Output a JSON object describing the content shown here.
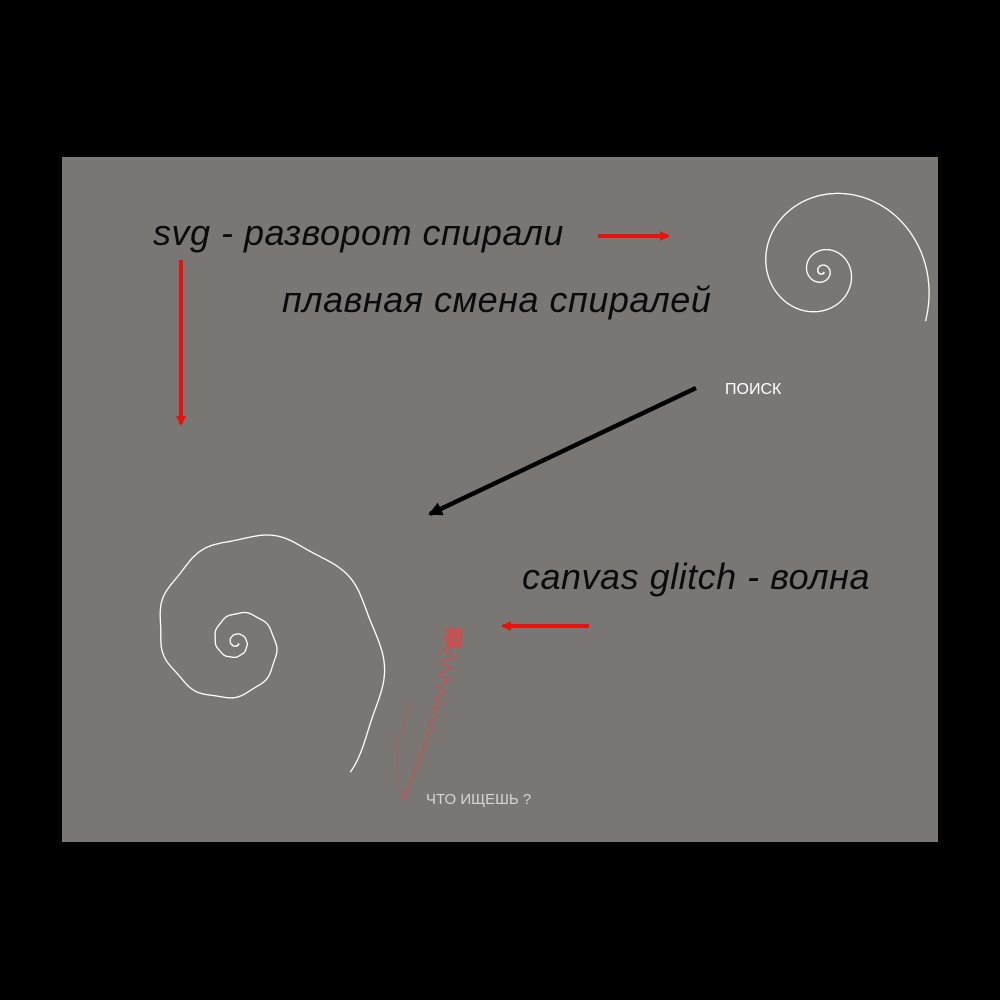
{
  "annotations": {
    "svg_title": "svg - разворот спирали",
    "smooth_change": "плавная смена спиралей",
    "canvas_title": "canvas glitch - волна"
  },
  "ui": {
    "search_button": "ПОИСК",
    "search_prompt": "ЧТО ИЩЕШЬ ?"
  },
  "colors": {
    "background": "#000000",
    "panel": "#7a7674",
    "spiral": "#ffffff",
    "arrow_red": "#e8120c",
    "arrow_black": "#000000",
    "glitch": "#c9504f",
    "annotation_text": "#0b0b0b",
    "prompt_text": "#d9d4d2"
  }
}
